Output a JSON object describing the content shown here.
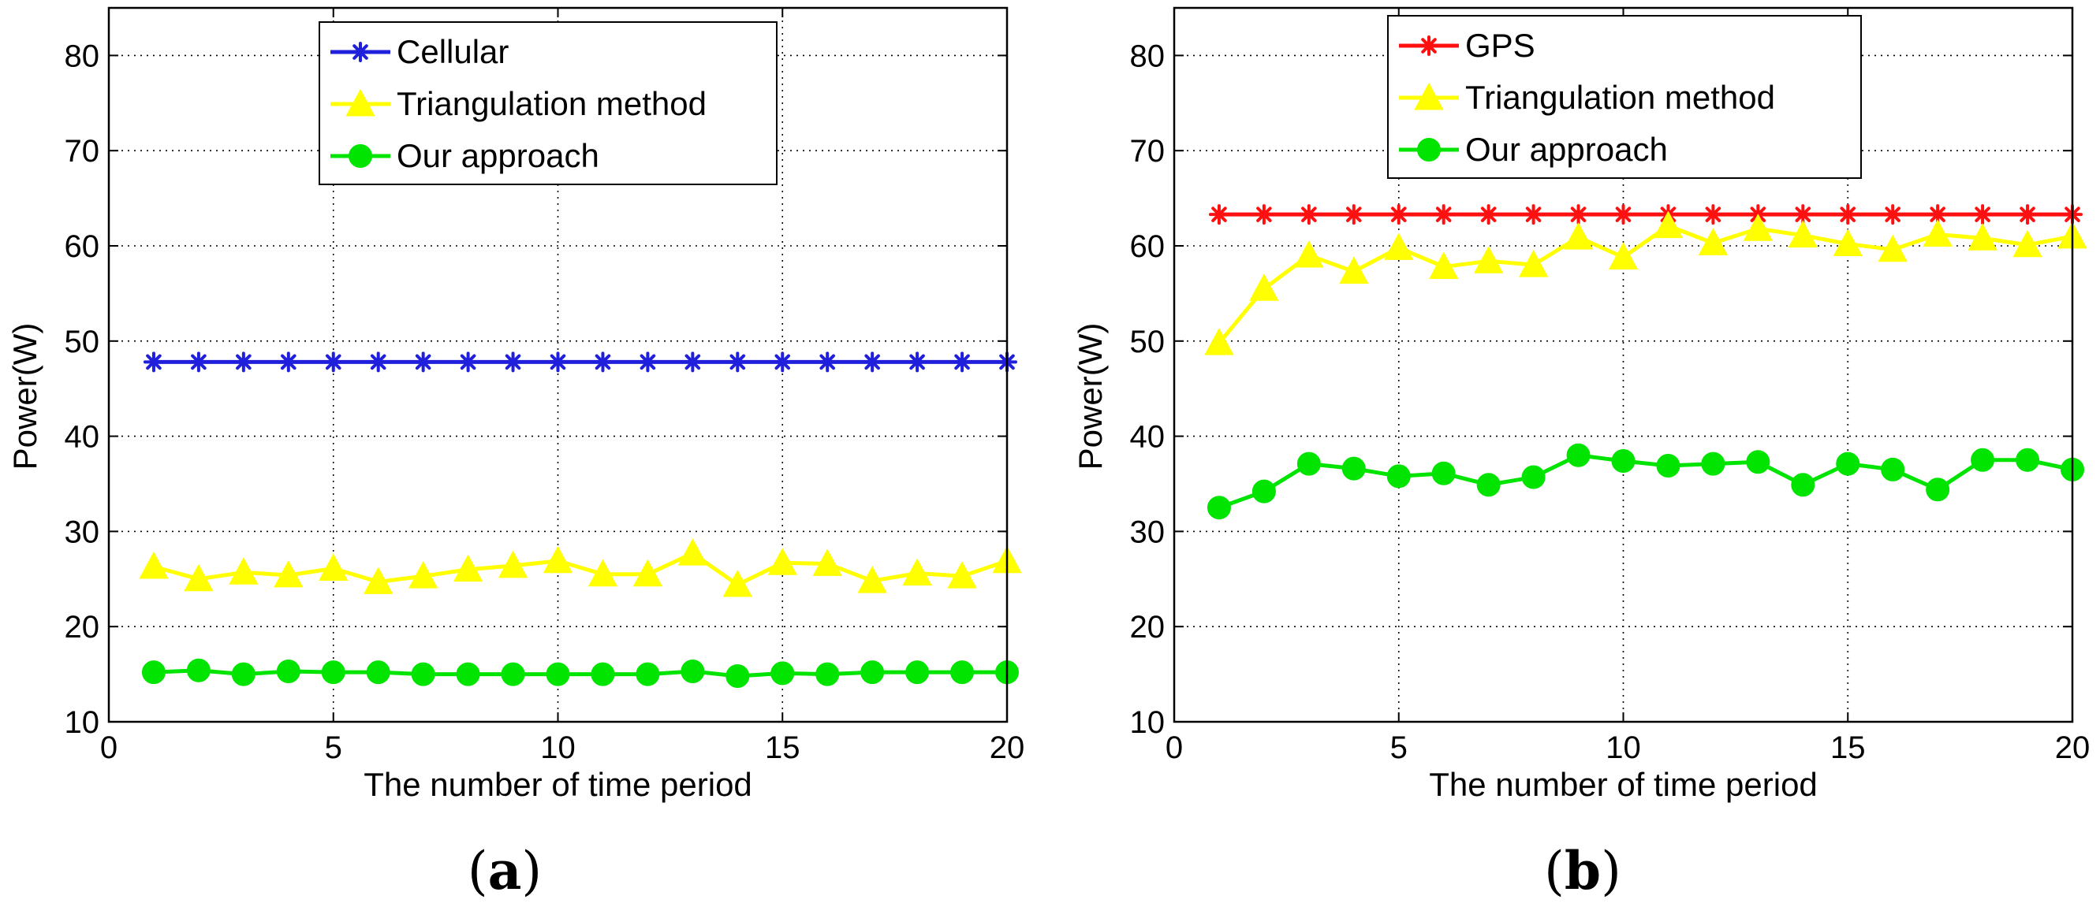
{
  "charts": [
    {
      "type": "line",
      "panel_label": "a",
      "xlabel": "The number of time period",
      "ylabel": "Power(W)",
      "xlim": [
        0,
        20
      ],
      "ylim": [
        10,
        85
      ],
      "xticks": [
        0,
        5,
        10,
        15,
        20
      ],
      "yticks": [
        10,
        20,
        30,
        40,
        50,
        60,
        70,
        80
      ],
      "grid": true,
      "legend_position": "top-center",
      "x": [
        1,
        2,
        3,
        4,
        5,
        6,
        7,
        8,
        9,
        10,
        11,
        12,
        13,
        14,
        15,
        16,
        17,
        18,
        19,
        20
      ],
      "series": [
        {
          "name": "Cellular",
          "color": "#1f1fdc",
          "marker": "asterisk",
          "values": [
            47.8,
            47.8,
            47.8,
            47.8,
            47.8,
            47.8,
            47.8,
            47.8,
            47.8,
            47.8,
            47.8,
            47.8,
            47.8,
            47.8,
            47.8,
            47.8,
            47.8,
            47.8,
            47.8,
            47.8
          ]
        },
        {
          "name": "Triangulation method",
          "color": "#ffff00",
          "marker": "triangle",
          "values": [
            26.3,
            25.0,
            25.7,
            25.4,
            26.1,
            24.7,
            25.3,
            26.0,
            26.4,
            26.9,
            25.5,
            25.5,
            27.7,
            24.4,
            26.7,
            26.6,
            24.8,
            25.6,
            25.3,
            26.9
          ]
        },
        {
          "name": "Our approach",
          "color": "#00e400",
          "marker": "circle",
          "values": [
            15.2,
            15.4,
            15.0,
            15.3,
            15.2,
            15.2,
            15.0,
            15.0,
            15.0,
            15.0,
            15.0,
            15.0,
            15.3,
            14.8,
            15.1,
            15.0,
            15.2,
            15.2,
            15.2,
            15.2
          ]
        }
      ]
    },
    {
      "type": "line",
      "panel_label": "b",
      "xlabel": "The number of time period",
      "ylabel": "Power(W)",
      "xlim": [
        0,
        20
      ],
      "ylim": [
        10,
        85
      ],
      "xticks": [
        0,
        5,
        10,
        15,
        20
      ],
      "yticks": [
        10,
        20,
        30,
        40,
        50,
        60,
        70,
        80
      ],
      "grid": true,
      "legend_position": "top-center",
      "x": [
        1,
        2,
        3,
        4,
        5,
        6,
        7,
        8,
        9,
        10,
        11,
        12,
        13,
        14,
        15,
        16,
        17,
        18,
        19,
        20
      ],
      "series": [
        {
          "name": "GPS",
          "color": "#ff1010",
          "marker": "asterisk",
          "values": [
            63.3,
            63.3,
            63.3,
            63.3,
            63.3,
            63.3,
            63.3,
            63.3,
            63.3,
            63.3,
            63.3,
            63.3,
            63.3,
            63.3,
            63.3,
            63.3,
            63.3,
            63.3,
            63.3,
            63.3
          ]
        },
        {
          "name": "Triangulation method",
          "color": "#ffff00",
          "marker": "triangle",
          "values": [
            49.8,
            55.5,
            59.0,
            57.3,
            59.8,
            57.8,
            58.4,
            58.0,
            60.9,
            58.8,
            62.1,
            60.3,
            61.8,
            61.1,
            60.2,
            59.6,
            61.2,
            60.8,
            60.1,
            61.0
          ]
        },
        {
          "name": "Our approach",
          "color": "#00e400",
          "marker": "circle",
          "values": [
            32.5,
            34.2,
            37.1,
            36.6,
            35.8,
            36.1,
            34.9,
            35.7,
            38.0,
            37.4,
            36.9,
            37.1,
            37.3,
            34.9,
            37.1,
            36.5,
            34.4,
            37.5,
            37.5,
            36.5
          ]
        }
      ]
    }
  ]
}
